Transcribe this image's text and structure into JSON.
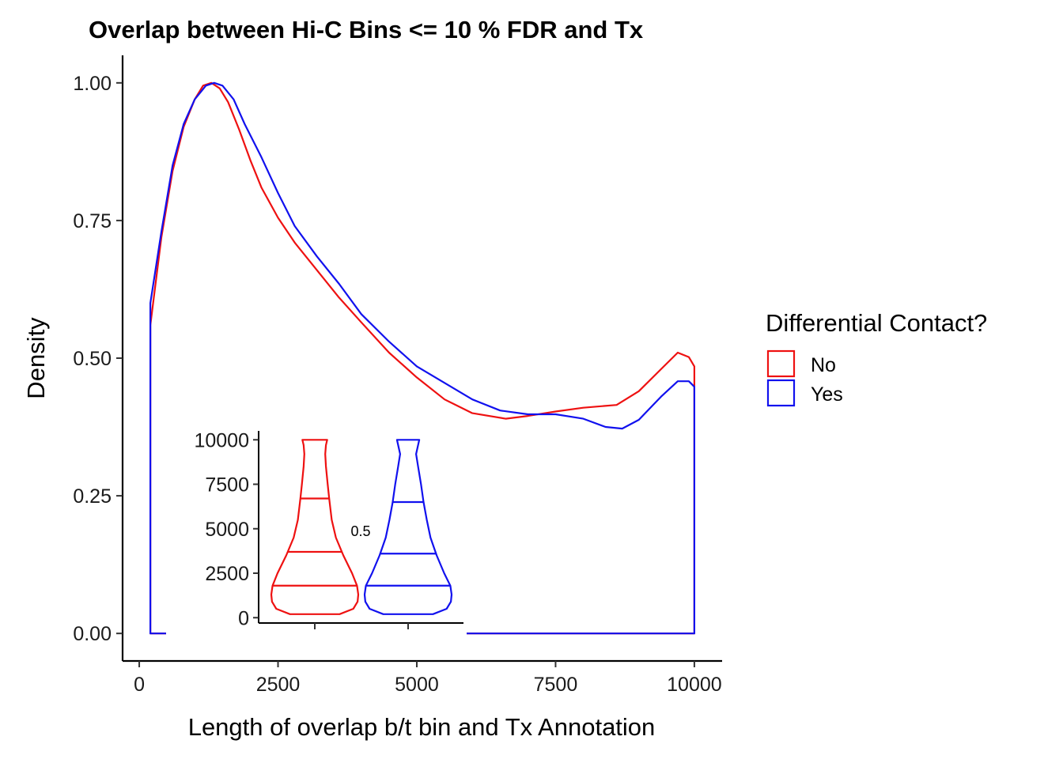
{
  "chart_data": [
    {
      "type": "area",
      "title": "Overlap between Hi-C Bins <= 10 % FDR and Tx",
      "xlabel": "Length of overlap b/t bin and Tx Annotation",
      "ylabel": "Density",
      "xlim": [
        -300,
        10500
      ],
      "ylim": [
        -0.05,
        1.05
      ],
      "x_ticks": [
        0,
        2500,
        5000,
        7500,
        10000
      ],
      "x_tick_labels": [
        "0",
        "2500",
        "5000",
        "7500",
        "10000"
      ],
      "y_ticks": [
        0,
        0.25,
        0.5,
        0.75,
        1.0
      ],
      "y_tick_labels": [
        "0.00",
        "0.25",
        "0.50",
        "0.75",
        "1.00"
      ],
      "grid": false,
      "legend": {
        "title": "Differential Contact?",
        "position": "right"
      },
      "series": [
        {
          "name": "No",
          "color": "#ee1111",
          "points": [
            [
              200,
              0.56
            ],
            [
              400,
              0.72
            ],
            [
              600,
              0.84
            ],
            [
              800,
              0.92
            ],
            [
              1000,
              0.97
            ],
            [
              1150,
              0.995
            ],
            [
              1300,
              1.0
            ],
            [
              1450,
              0.99
            ],
            [
              1600,
              0.965
            ],
            [
              1800,
              0.915
            ],
            [
              2000,
              0.86
            ],
            [
              2200,
              0.81
            ],
            [
              2500,
              0.755
            ],
            [
              2800,
              0.71
            ],
            [
              3200,
              0.66
            ],
            [
              3600,
              0.61
            ],
            [
              4000,
              0.565
            ],
            [
              4500,
              0.51
            ],
            [
              5000,
              0.465
            ],
            [
              5500,
              0.425
            ],
            [
              6000,
              0.4
            ],
            [
              6600,
              0.39
            ],
            [
              7000,
              0.395
            ],
            [
              7500,
              0.403
            ],
            [
              8000,
              0.41
            ],
            [
              8600,
              0.415
            ],
            [
              9000,
              0.44
            ],
            [
              9400,
              0.48
            ],
            [
              9700,
              0.51
            ],
            [
              9900,
              0.502
            ],
            [
              10000,
              0.485
            ]
          ]
        },
        {
          "name": "Yes",
          "color": "#1111ee",
          "points": [
            [
              200,
              0.6
            ],
            [
              400,
              0.73
            ],
            [
              600,
              0.85
            ],
            [
              800,
              0.925
            ],
            [
              1000,
              0.97
            ],
            [
              1200,
              0.995
            ],
            [
              1350,
              1.0
            ],
            [
              1500,
              0.995
            ],
            [
              1700,
              0.97
            ],
            [
              1900,
              0.925
            ],
            [
              2200,
              0.865
            ],
            [
              2500,
              0.8
            ],
            [
              2800,
              0.74
            ],
            [
              3200,
              0.685
            ],
            [
              3600,
              0.635
            ],
            [
              4000,
              0.58
            ],
            [
              4500,
              0.53
            ],
            [
              5000,
              0.485
            ],
            [
              5500,
              0.455
            ],
            [
              6000,
              0.425
            ],
            [
              6500,
              0.405
            ],
            [
              7000,
              0.398
            ],
            [
              7500,
              0.398
            ],
            [
              8000,
              0.39
            ],
            [
              8400,
              0.375
            ],
            [
              8700,
              0.372
            ],
            [
              9000,
              0.388
            ],
            [
              9400,
              0.43
            ],
            [
              9700,
              0.458
            ],
            [
              9900,
              0.458
            ],
            [
              10000,
              0.448
            ]
          ]
        }
      ]
    },
    {
      "type": "violin",
      "title": "",
      "ylim": [
        -300,
        10500
      ],
      "y_ticks": [
        0,
        2500,
        5000,
        7500,
        10000
      ],
      "y_tick_labels": [
        "0",
        "2500",
        "5000",
        "7500",
        "10000"
      ],
      "annotation": "0.5",
      "groups": [
        {
          "name": "No",
          "color": "#ee1111",
          "quantiles": [
            1800,
            3700,
            6700
          ],
          "profile": [
            [
              200,
              1.0
            ],
            [
              500,
              1.55
            ],
            [
              900,
              1.72
            ],
            [
              1300,
              1.75
            ],
            [
              1800,
              1.7
            ],
            [
              2500,
              1.5
            ],
            [
              3500,
              1.15
            ],
            [
              4500,
              0.85
            ],
            [
              5500,
              0.68
            ],
            [
              6700,
              0.58
            ],
            [
              7500,
              0.52
            ],
            [
              8500,
              0.45
            ],
            [
              9200,
              0.42
            ],
            [
              9700,
              0.45
            ],
            [
              10000,
              0.5
            ]
          ]
        },
        {
          "name": "Yes",
          "color": "#1111ee",
          "quantiles": [
            1800,
            3600,
            6500
          ],
          "profile": [
            [
              200,
              1.0
            ],
            [
              500,
              1.55
            ],
            [
              900,
              1.72
            ],
            [
              1300,
              1.75
            ],
            [
              1800,
              1.7
            ],
            [
              2500,
              1.45
            ],
            [
              3500,
              1.15
            ],
            [
              4500,
              0.9
            ],
            [
              5500,
              0.75
            ],
            [
              6500,
              0.62
            ],
            [
              7500,
              0.52
            ],
            [
              8500,
              0.4
            ],
            [
              9200,
              0.32
            ],
            [
              9700,
              0.4
            ],
            [
              10000,
              0.45
            ]
          ]
        }
      ]
    }
  ]
}
